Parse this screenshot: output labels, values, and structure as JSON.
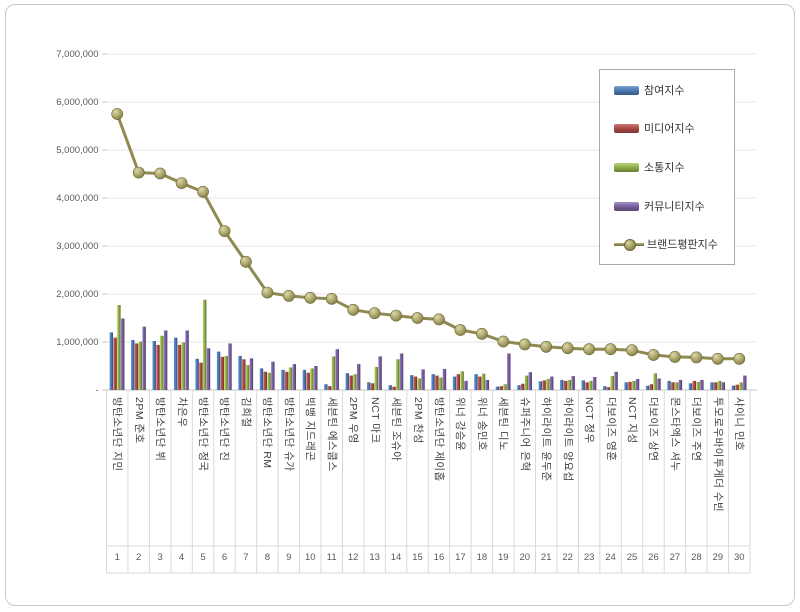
{
  "chart_data": {
    "type": "bar+line",
    "title": "",
    "grid": true,
    "legend_position": "top-right",
    "categories": [
      "방탄소년단 지민",
      "2PM 준호",
      "방탄소년단 뷔",
      "차은우",
      "방탄소년단 정국",
      "방탄소년단 진",
      "김희철",
      "방탄소년단 RM",
      "방탄소년단 슈가",
      "빅뱅 지드래곤",
      "세븐틴 에스쿱스",
      "2PM 우영",
      "NCT 마크",
      "세븐틴 조슈아",
      "2PM 찬성",
      "방탄소년단 제이홉",
      "위너 강승윤",
      "위너 송민호",
      "세븐틴 디노",
      "슈퍼주니어 은혁",
      "하이라이트 윤두준",
      "하이라이트 양요섭",
      "NCT 정우",
      "더보이즈 영훈",
      "NCT 지성",
      "더보이즈 상연",
      "몬스타엑스 셔누",
      "더보이즈 주연",
      "투모로우바이투게더 수빈",
      "샤이니 민호"
    ],
    "ranks": [
      "1",
      "2",
      "3",
      "4",
      "5",
      "6",
      "7",
      "8",
      "9",
      "10",
      "11",
      "12",
      "13",
      "14",
      "15",
      "16",
      "17",
      "18",
      "19",
      "20",
      "21",
      "22",
      "23",
      "24",
      "25",
      "26",
      "27",
      "28",
      "29",
      "30"
    ],
    "y_axis": {
      "min": 0,
      "max": 7000000,
      "tick_interval": 1000000,
      "tick_labels": [
        "-",
        "1,000,000",
        "2,000,000",
        "3,000,000",
        "4,000,000",
        "5,000,000",
        "6,000,000",
        "7,000,000"
      ]
    },
    "series": [
      {
        "name": "참여지수",
        "type": "bar",
        "color": "#4E7CB5",
        "values": [
          1200000,
          1040000,
          1020000,
          1090000,
          650000,
          800000,
          710000,
          450000,
          420000,
          420000,
          120000,
          350000,
          160000,
          100000,
          310000,
          330000,
          280000,
          330000,
          70000,
          100000,
          180000,
          210000,
          200000,
          80000,
          160000,
          90000,
          190000,
          140000,
          160000,
          90000
        ]
      },
      {
        "name": "미디어지수",
        "type": "bar",
        "color": "#AD4B47",
        "values": [
          1090000,
          970000,
          940000,
          940000,
          570000,
          690000,
          640000,
          380000,
          380000,
          360000,
          80000,
          300000,
          140000,
          70000,
          280000,
          300000,
          330000,
          280000,
          80000,
          130000,
          200000,
          190000,
          160000,
          60000,
          170000,
          120000,
          160000,
          190000,
          160000,
          110000
        ]
      },
      {
        "name": "소통지수",
        "type": "bar",
        "color": "#93AF49",
        "values": [
          1770000,
          1010000,
          1130000,
          990000,
          1880000,
          710000,
          520000,
          360000,
          470000,
          450000,
          700000,
          330000,
          480000,
          640000,
          240000,
          260000,
          390000,
          340000,
          120000,
          300000,
          230000,
          210000,
          190000,
          290000,
          190000,
          350000,
          160000,
          170000,
          190000,
          160000
        ]
      },
      {
        "name": "커뮤니티지수",
        "type": "bar",
        "color": "#7A61A2",
        "values": [
          1490000,
          1320000,
          1240000,
          1240000,
          870000,
          970000,
          660000,
          590000,
          540000,
          500000,
          850000,
          540000,
          700000,
          760000,
          430000,
          440000,
          190000,
          210000,
          760000,
          370000,
          280000,
          290000,
          270000,
          380000,
          230000,
          240000,
          210000,
          210000,
          160000,
          300000
        ]
      }
    ],
    "line_series": {
      "name": "브랜드평판지수",
      "type": "line",
      "color": "#8F8A52",
      "values": [
        5750000,
        4530000,
        4510000,
        4310000,
        4130000,
        3310000,
        2670000,
        2030000,
        1960000,
        1920000,
        1900000,
        1670000,
        1600000,
        1550000,
        1500000,
        1470000,
        1250000,
        1170000,
        1010000,
        950000,
        900000,
        870000,
        850000,
        850000,
        830000,
        730000,
        690000,
        680000,
        650000,
        650000
      ]
    }
  }
}
